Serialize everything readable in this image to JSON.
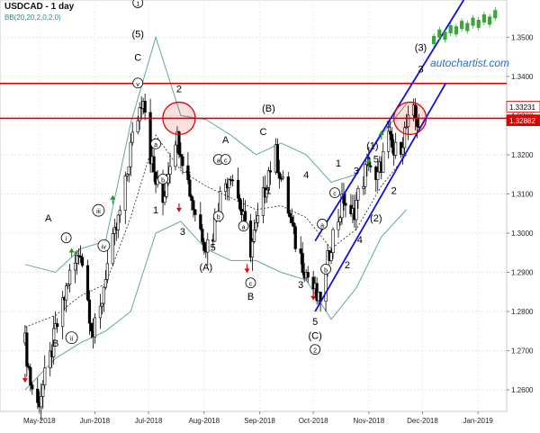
{
  "header": {
    "title": "USDCAD - 1 day",
    "indicator": "BB(20,20,2,0,2.0)"
  },
  "brand": {
    "name": "autochartist.com",
    "logo_icon": "autochartist-logo-icon"
  },
  "colors": {
    "bull_candle": "#000000",
    "bear_candle": "#000000",
    "bollinger": "#5fa8a0",
    "middle_band": "#222222",
    "resistance": "#e00000",
    "channel": "#1010e0",
    "highlight": "#e00000",
    "arrow_up": "#1a9e1a",
    "arrow_down": "#d01010",
    "logo": "#3aa63a"
  },
  "chart_data": {
    "type": "candlestick",
    "symbol": "USDCAD",
    "timeframe": "1 day",
    "xlabels": [
      "May-2018",
      "Jun-2018",
      "Jul-2018",
      "Aug-2018",
      "Sep-2018",
      "Oct-2018",
      "Nov-2018",
      "Dec-2018",
      "Jan-2019"
    ],
    "y_ticks": [
      "1.2600",
      "1.2700",
      "1.2800",
      "1.2900",
      "1.3000",
      "1.3100",
      "1.3200",
      "1.3300",
      "1.3400",
      "1.3500"
    ],
    "y_range": [
      1.2545,
      1.3595
    ],
    "price_badges": [
      {
        "value": "1.33231",
        "price": 1.3323,
        "fill": "#ffffff",
        "text": "#000000"
      },
      {
        "value": "1.32882",
        "price": 1.3288,
        "fill": "#e00000",
        "text": "#ffffff"
      }
    ],
    "resistance_levels": [
      1.3382,
      1.3293
    ],
    "close_series": [
      [
        "2018-04-23",
        1.272
      ],
      [
        "2018-04-26",
        1.262
      ],
      [
        "2018-04-30",
        1.256
      ],
      [
        "2018-05-03",
        1.261
      ],
      [
        "2018-05-07",
        1.268
      ],
      [
        "2018-05-10",
        1.275
      ],
      [
        "2018-05-14",
        1.281
      ],
      [
        "2018-05-17",
        1.288
      ],
      [
        "2018-05-21",
        1.292
      ],
      [
        "2018-05-24",
        1.296
      ],
      [
        "2018-05-28",
        1.283
      ],
      [
        "2018-05-31",
        1.274
      ],
      [
        "2018-06-04",
        1.28
      ],
      [
        "2018-06-07",
        1.29
      ],
      [
        "2018-06-11",
        1.297
      ],
      [
        "2018-06-14",
        1.303
      ],
      [
        "2018-06-18",
        1.312
      ],
      [
        "2018-06-21",
        1.322
      ],
      [
        "2018-06-25",
        1.33
      ],
      [
        "2018-06-28",
        1.336
      ],
      [
        "2018-07-02",
        1.32
      ],
      [
        "2018-07-05",
        1.313
      ],
      [
        "2018-07-09",
        1.308
      ],
      [
        "2018-07-12",
        1.317
      ],
      [
        "2018-07-16",
        1.325
      ],
      [
        "2018-07-19",
        1.322
      ],
      [
        "2018-07-23",
        1.313
      ],
      [
        "2018-07-26",
        1.307
      ],
      [
        "2018-07-30",
        1.301
      ],
      [
        "2018-08-02",
        1.297
      ],
      [
        "2018-08-06",
        1.3
      ],
      [
        "2018-08-09",
        1.308
      ],
      [
        "2018-08-13",
        1.313
      ],
      [
        "2018-08-16",
        1.316
      ],
      [
        "2018-08-20",
        1.309
      ],
      [
        "2018-08-23",
        1.303
      ],
      [
        "2018-08-27",
        1.296
      ],
      [
        "2018-08-30",
        1.301
      ],
      [
        "2018-09-03",
        1.309
      ],
      [
        "2018-09-06",
        1.316
      ],
      [
        "2018-09-10",
        1.32
      ],
      [
        "2018-09-13",
        1.314
      ],
      [
        "2018-09-17",
        1.306
      ],
      [
        "2018-09-20",
        1.299
      ],
      [
        "2018-09-24",
        1.294
      ],
      [
        "2018-09-27",
        1.29
      ],
      [
        "2018-10-01",
        1.286
      ],
      [
        "2018-10-04",
        1.282
      ],
      [
        "2018-10-08",
        1.29
      ],
      [
        "2018-10-11",
        1.298
      ],
      [
        "2018-10-15",
        1.304
      ],
      [
        "2018-10-18",
        1.309
      ],
      [
        "2018-10-22",
        1.303
      ],
      [
        "2018-10-25",
        1.308
      ],
      [
        "2018-10-29",
        1.314
      ],
      [
        "2018-11-01",
        1.319
      ],
      [
        "2018-11-05",
        1.312
      ],
      [
        "2018-11-08",
        1.318
      ],
      [
        "2018-11-12",
        1.324
      ],
      [
        "2018-11-15",
        1.32
      ],
      [
        "2018-11-19",
        1.323
      ],
      [
        "2018-11-22",
        1.327
      ],
      [
        "2018-11-26",
        1.33
      ],
      [
        "2018-11-29",
        1.328
      ]
    ],
    "bollinger_upper": [
      [
        "2018-04-23",
        1.292
      ],
      [
        "2018-05-10",
        1.29
      ],
      [
        "2018-05-24",
        1.296
      ],
      [
        "2018-06-07",
        1.298
      ],
      [
        "2018-06-21",
        1.328
      ],
      [
        "2018-07-05",
        1.35
      ],
      [
        "2018-07-19",
        1.33
      ],
      [
        "2018-08-02",
        1.329
      ],
      [
        "2018-08-16",
        1.325
      ],
      [
        "2018-08-30",
        1.32
      ],
      [
        "2018-09-13",
        1.323
      ],
      [
        "2018-09-27",
        1.32
      ],
      [
        "2018-10-11",
        1.313
      ],
      [
        "2018-10-25",
        1.315
      ],
      [
        "2018-11-08",
        1.325
      ],
      [
        "2018-11-22",
        1.333
      ]
    ],
    "bollinger_lower": [
      [
        "2018-04-23",
        1.26
      ],
      [
        "2018-05-10",
        1.268
      ],
      [
        "2018-05-24",
        1.272
      ],
      [
        "2018-06-07",
        1.275
      ],
      [
        "2018-06-21",
        1.28
      ],
      [
        "2018-07-05",
        1.3
      ],
      [
        "2018-07-19",
        1.303
      ],
      [
        "2018-08-02",
        1.296
      ],
      [
        "2018-08-16",
        1.293
      ],
      [
        "2018-08-30",
        1.293
      ],
      [
        "2018-09-13",
        1.29
      ],
      [
        "2018-09-27",
        1.288
      ],
      [
        "2018-10-11",
        1.278
      ],
      [
        "2018-10-25",
        1.286
      ],
      [
        "2018-11-08",
        1.299
      ],
      [
        "2018-11-22",
        1.306
      ]
    ],
    "bollinger_middle": [
      [
        "2018-04-23",
        1.276
      ],
      [
        "2018-05-10",
        1.279
      ],
      [
        "2018-05-24",
        1.284
      ],
      [
        "2018-06-07",
        1.287
      ],
      [
        "2018-06-21",
        1.304
      ],
      [
        "2018-07-05",
        1.325
      ],
      [
        "2018-07-19",
        1.316
      ],
      [
        "2018-08-02",
        1.312
      ],
      [
        "2018-08-16",
        1.309
      ],
      [
        "2018-08-30",
        1.306
      ],
      [
        "2018-09-13",
        1.307
      ],
      [
        "2018-09-27",
        1.304
      ],
      [
        "2018-10-11",
        1.296
      ],
      [
        "2018-10-25",
        1.301
      ],
      [
        "2018-11-08",
        1.312
      ],
      [
        "2018-11-22",
        1.32
      ]
    ],
    "channel_lines": [
      {
        "from": [
          "2018-10-02",
          1.298
        ],
        "to": [
          "2018-12-24",
          1.3595
        ]
      },
      {
        "from": [
          "2018-10-02",
          1.28
        ],
        "to": [
          "2018-12-14",
          1.3383
        ]
      }
    ],
    "highlights": [
      {
        "date": "2018-07-18",
        "price": 1.3293
      },
      {
        "date": "2018-11-24",
        "price": 1.3293
      }
    ],
    "wave_labels": [
      {
        "text": "1",
        "date": "2018-06-25",
        "price": 1.358,
        "circled": true
      },
      {
        "text": "(5)",
        "date": "2018-06-25",
        "price": 1.35
      },
      {
        "text": "C",
        "date": "2018-06-25",
        "price": 1.344
      },
      {
        "text": "v",
        "date": "2018-06-25",
        "price": 1.3375,
        "circled": true
      },
      {
        "text": "2",
        "date": "2018-07-18",
        "price": 1.336
      },
      {
        "text": "a",
        "date": "2018-07-05",
        "price": 1.322,
        "circled": true
      },
      {
        "text": "b",
        "date": "2018-07-09",
        "price": 1.313,
        "circled": true
      },
      {
        "text": "1",
        "date": "2018-07-05",
        "price": 1.305
      },
      {
        "text": "3",
        "date": "2018-07-20",
        "price": 1.2995
      },
      {
        "text": "4",
        "date": "2018-07-23",
        "price": 1.315
      },
      {
        "text": "A",
        "date": "2018-08-13",
        "price": 1.323
      },
      {
        "text": "a",
        "date": "2018-08-09",
        "price": 1.318,
        "circled": true
      },
      {
        "text": "c",
        "date": "2018-08-13",
        "price": 1.318,
        "circled": true
      },
      {
        "text": "b",
        "date": "2018-08-09",
        "price": 1.3035,
        "circled": true
      },
      {
        "text": "5",
        "date": "2018-08-06",
        "price": 1.2955
      },
      {
        "text": "(A)",
        "date": "2018-08-02",
        "price": 1.2905
      },
      {
        "text": "(B)",
        "date": "2018-09-06",
        "price": 1.331
      },
      {
        "text": "C",
        "date": "2018-09-03",
        "price": 1.325
      },
      {
        "text": "a",
        "date": "2018-08-23",
        "price": 1.301,
        "circled": true
      },
      {
        "text": "1",
        "date": "2018-09-06",
        "price": 1.31
      },
      {
        "text": "3",
        "date": "2018-09-24",
        "price": 1.286
      },
      {
        "text": "4",
        "date": "2018-09-27",
        "price": 1.314
      },
      {
        "text": "c",
        "date": "2018-08-27",
        "price": 1.2865,
        "circled": true
      },
      {
        "text": "B",
        "date": "2018-08-27",
        "price": 1.283
      },
      {
        "text": "5",
        "date": "2018-10-02",
        "price": 1.2765
      },
      {
        "text": "(C)",
        "date": "2018-10-02",
        "price": 1.273
      },
      {
        "text": "2",
        "date": "2018-10-02",
        "price": 1.2695,
        "circled": true
      },
      {
        "text": "a",
        "date": "2018-10-06",
        "price": 1.3015,
        "circled": true
      },
      {
        "text": "c",
        "date": "2018-10-13",
        "price": 1.3095,
        "circled": true
      },
      {
        "text": "b",
        "date": "2018-10-08",
        "price": 1.29,
        "circled": true
      },
      {
        "text": "1",
        "date": "2018-10-15",
        "price": 1.317
      },
      {
        "text": "2",
        "date": "2018-10-20",
        "price": 1.291
      },
      {
        "text": "3",
        "date": "2018-10-25",
        "price": 1.315
      },
      {
        "text": "4",
        "date": "2018-10-27",
        "price": 1.2975
      },
      {
        "text": "5",
        "date": "2018-11-05",
        "price": 1.318
      },
      {
        "text": "(1)",
        "date": "2018-11-03",
        "price": 1.3215
      },
      {
        "text": "(2)",
        "date": "2018-11-05",
        "price": 1.303
      },
      {
        "text": "1",
        "date": "2018-11-12",
        "price": 1.327
      },
      {
        "text": "2",
        "date": "2018-11-15",
        "price": 1.31
      },
      {
        "text": "(3)",
        "date": "2018-11-30",
        "price": 1.3465
      },
      {
        "text": "3",
        "date": "2018-11-30",
        "price": 1.341
      },
      {
        "text": "i",
        "date": "2018-05-16",
        "price": 1.298,
        "circled": true
      },
      {
        "text": "ii",
        "date": "2018-05-19",
        "price": 1.2725,
        "circled": true
      },
      {
        "text": "iii",
        "date": "2018-06-03",
        "price": 1.305,
        "circled": true
      },
      {
        "text": "iv",
        "date": "2018-06-06",
        "price": 1.296,
        "circled": true
      },
      {
        "text": "A",
        "date": "2018-05-06",
        "price": 1.303
      },
      {
        "text": "B",
        "date": "2018-05-10",
        "price": 1.271
      }
    ],
    "arrows": [
      {
        "dir": "up",
        "date": "2018-05-19",
        "price": 1.2955
      },
      {
        "dir": "up",
        "date": "2018-06-11",
        "price": 1.309
      },
      {
        "dir": "up",
        "date": "2018-11-01",
        "price": 1.3185
      },
      {
        "dir": "up",
        "date": "2018-11-08",
        "price": 1.3255
      },
      {
        "dir": "down",
        "date": "2018-04-23",
        "price": 1.2625
      },
      {
        "dir": "down",
        "date": "2018-07-18",
        "price": 1.306
      },
      {
        "dir": "down",
        "date": "2018-08-25",
        "price": 1.2905
      },
      {
        "dir": "down",
        "date": "2018-10-01",
        "price": 1.2835
      }
    ]
  }
}
